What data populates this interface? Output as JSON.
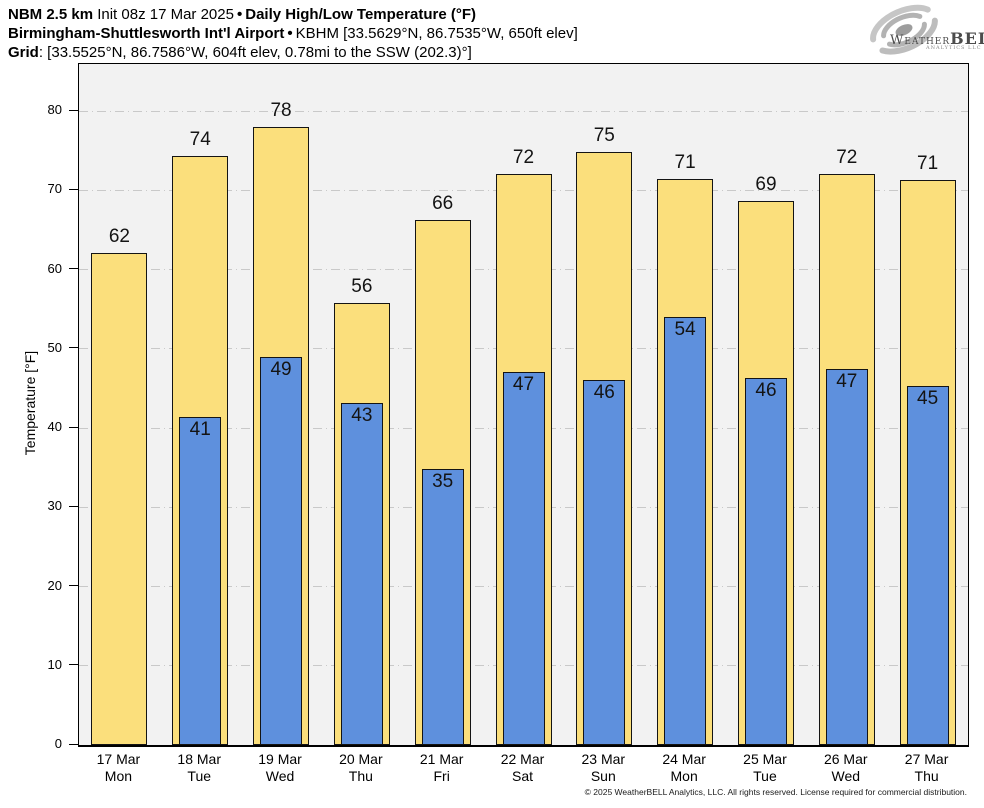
{
  "header": {
    "line1_model": "NBM 2.5 km",
    "line1_init": "Init 08z 17 Mar 2025",
    "line1_sep": "•",
    "line1_product": "Daily High/Low Temperature (°F)",
    "line2_station": "Birmingham-Shuttlesworth Int'l Airport",
    "line2_sep": "•",
    "line2_meta": "KBHM [33.5629°N, 86.7535°W, 650ft elev]",
    "line3_label": "Grid",
    "line3_meta": ": [33.5525°N, 86.7586°W, 604ft elev, 0.78mi to the SSW (202.3)°]"
  },
  "logo": {
    "weather": "Weather",
    "bell": "BELL",
    "sub": "Analytics LLC"
  },
  "footer": {
    "copyright": "© 2025 WeatherBELL Analytics, LLC. All rights reserved. License required for commercial distribution."
  },
  "chart_data": {
    "type": "bar",
    "title": "Daily High/Low Temperature (°F)",
    "xlabel": "",
    "ylabel": "Temperature [°F]",
    "ylim": [
      0,
      86
    ],
    "yticks": [
      0,
      10,
      20,
      30,
      40,
      50,
      60,
      70,
      80
    ],
    "grid": "horizontal dash-dot gridlines at every 10°F",
    "legend_position": "none",
    "plot_bg_color": "#F2F2F2",
    "gridline_color": "#C9C9C9",
    "categories": [
      {
        "date": "17 Mar",
        "day": "Mon"
      },
      {
        "date": "18 Mar",
        "day": "Tue"
      },
      {
        "date": "19 Mar",
        "day": "Wed"
      },
      {
        "date": "20 Mar",
        "day": "Thu"
      },
      {
        "date": "21 Mar",
        "day": "Fri"
      },
      {
        "date": "22 Mar",
        "day": "Sat"
      },
      {
        "date": "23 Mar",
        "day": "Sun"
      },
      {
        "date": "24 Mar",
        "day": "Mon"
      },
      {
        "date": "25 Mar",
        "day": "Tue"
      },
      {
        "date": "26 Mar",
        "day": "Wed"
      },
      {
        "date": "27 Mar",
        "day": "Thu"
      }
    ],
    "series": [
      {
        "name": "Daily High",
        "color": "#FBDF7C",
        "values": [
          62,
          74,
          78,
          56,
          66,
          72,
          75,
          71,
          69,
          72,
          71
        ],
        "values_exact": [
          62.1,
          74.3,
          78.0,
          55.8,
          66.2,
          72.0,
          74.8,
          71.4,
          68.6,
          72.1,
          71.3
        ]
      },
      {
        "name": "Daily Low",
        "color": "#5E90DD",
        "values": [
          null,
          41,
          49,
          43,
          35,
          47,
          46,
          54,
          46,
          47,
          45
        ],
        "values_exact": [
          null,
          41.4,
          48.9,
          43.2,
          34.8,
          47.1,
          46.1,
          54.0,
          46.3,
          47.4,
          45.3
        ]
      }
    ]
  }
}
